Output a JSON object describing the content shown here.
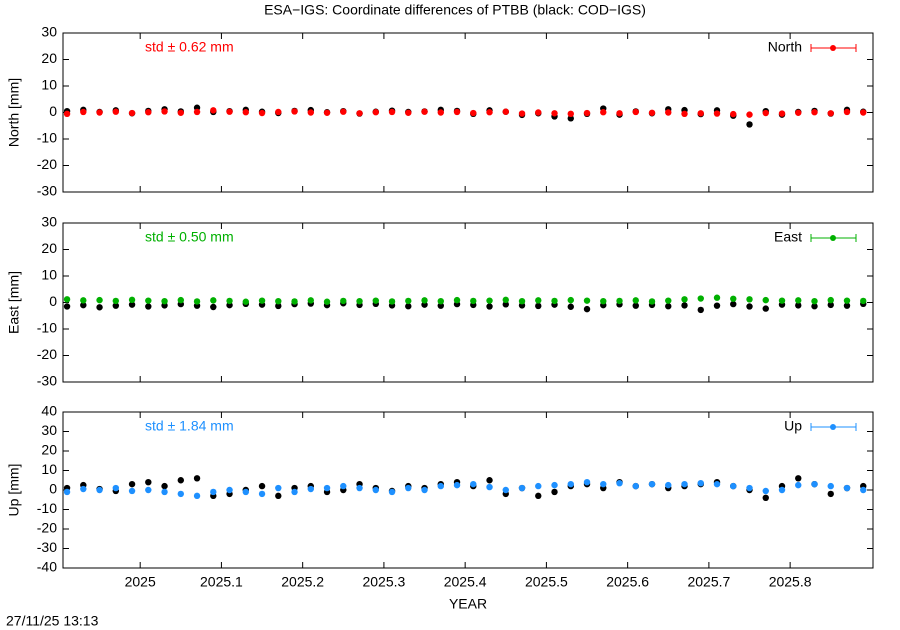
{
  "title": "ESA−IGS: Coordinate differences of PTBB (black: COD−IGS)",
  "timestamp": "27/11/25 13:13",
  "chart_data": [
    {
      "type": "scatter",
      "ylabel": "North [mm]",
      "annotation": "std ± 0.62 mm",
      "legend": "top-right",
      "xlim": [
        2024.905,
        2025.902
      ],
      "xticks": [
        2025,
        2025.1,
        2025.2,
        2025.3,
        2025.4,
        2025.5,
        2025.6,
        2025.7,
        2025.8
      ],
      "ylim": [
        -30,
        30
      ],
      "yticks": [
        -30,
        -20,
        -10,
        0,
        10,
        20,
        30
      ],
      "x": [
        2024.91,
        2024.93,
        2024.95,
        2024.97,
        2024.99,
        2025.01,
        2025.03,
        2025.05,
        2025.07,
        2025.09,
        2025.11,
        2025.13,
        2025.15,
        2025.17,
        2025.19,
        2025.21,
        2025.23,
        2025.25,
        2025.27,
        2025.29,
        2025.31,
        2025.33,
        2025.35,
        2025.37,
        2025.39,
        2025.41,
        2025.43,
        2025.45,
        2025.47,
        2025.49,
        2025.51,
        2025.53,
        2025.55,
        2025.57,
        2025.59,
        2025.61,
        2025.63,
        2025.65,
        2025.67,
        2025.69,
        2025.71,
        2025.73,
        2025.75,
        2025.77,
        2025.79,
        2025.81,
        2025.83,
        2025.85,
        2025.87,
        2025.89
      ],
      "series": [
        {
          "color": "#000000",
          "values": [
            0.5,
            1,
            0.2,
            0.8,
            -0.3,
            0.6,
            1.2,
            0.4,
            1.8,
            0.2,
            0.5,
            1,
            0.3,
            -0.2,
            0.6,
            0.9,
            0.1,
            0.5,
            -0.4,
            0.3,
            0.7,
            0.2,
            0.4,
            1,
            0.6,
            -0.5,
            0.8,
            0.3,
            -0.9,
            -0.3,
            -1.5,
            -2.2,
            -0.5,
            1.5,
            -0.8,
            0.4,
            -0.3,
            1.2,
            0.9,
            -0.6,
            0.8,
            -1.2,
            -4.5,
            0.5,
            -0.8,
            0.2,
            0.6,
            -0.4,
            1,
            0.3
          ]
        },
        {
          "name": "North",
          "color": "#ff0000",
          "values": [
            -0.5,
            0.2,
            0,
            0.3,
            -0.2,
            0.1,
            0.4,
            -0.1,
            0.2,
            0.8,
            0.3,
            0.1,
            -0.2,
            0.2,
            0.4,
            0,
            -0.1,
            0.3,
            -0.3,
            0.1,
            0.2,
            -0.1,
            0.3,
            0,
            0.2,
            -0.2,
            0.1,
            0.3,
            -0.4,
            0,
            -0.3,
            -0.5,
            -0.2,
            0.1,
            -0.3,
            0.2,
            -0.1,
            0,
            -0.5,
            -0.3,
            -0.4,
            -0.6,
            -0.8,
            -0.2,
            -0.4,
            -0.1,
            0.1,
            -0.3,
            0.2,
            0
          ]
        }
      ]
    },
    {
      "type": "scatter",
      "ylabel": "East [mm]",
      "annotation": "std ± 0.50 mm",
      "legend": "top-right",
      "xlim": [
        2024.905,
        2025.902
      ],
      "xticks": [
        2025,
        2025.1,
        2025.2,
        2025.3,
        2025.4,
        2025.5,
        2025.6,
        2025.7,
        2025.8
      ],
      "ylim": [
        -30,
        30
      ],
      "yticks": [
        -30,
        -20,
        -10,
        0,
        10,
        20,
        30
      ],
      "x": [
        2024.91,
        2024.93,
        2024.95,
        2024.97,
        2024.99,
        2025.01,
        2025.03,
        2025.05,
        2025.07,
        2025.09,
        2025.11,
        2025.13,
        2025.15,
        2025.17,
        2025.19,
        2025.21,
        2025.23,
        2025.25,
        2025.27,
        2025.29,
        2025.31,
        2025.33,
        2025.35,
        2025.37,
        2025.39,
        2025.41,
        2025.43,
        2025.45,
        2025.47,
        2025.49,
        2025.51,
        2025.53,
        2025.55,
        2025.57,
        2025.59,
        2025.61,
        2025.63,
        2025.65,
        2025.67,
        2025.69,
        2025.71,
        2025.73,
        2025.75,
        2025.77,
        2025.79,
        2025.81,
        2025.83,
        2025.85,
        2025.87,
        2025.89
      ],
      "series": [
        {
          "color": "#000000",
          "values": [
            -1.5,
            -1,
            -1.8,
            -1.2,
            -0.8,
            -1.5,
            -1.1,
            -0.6,
            -1.2,
            -1.7,
            -1,
            -0.5,
            -0.8,
            -1.3,
            -0.6,
            -0.4,
            -1,
            -0.3,
            -0.9,
            -0.5,
            -1.1,
            -1.4,
            -0.8,
            -1.2,
            -0.6,
            -0.9,
            -1.5,
            -0.7,
            -1.1,
            -1.3,
            -0.8,
            -1.6,
            -2.5,
            -1,
            -0.7,
            -1.2,
            -0.9,
            -1.4,
            -1.1,
            -2.8,
            -1.2,
            -0.6,
            -1.5,
            -2.3,
            -0.8,
            -1.1,
            -1.4,
            -0.9,
            -1.2,
            -0.5
          ]
        },
        {
          "name": "East",
          "color": "#00b000",
          "values": [
            1.2,
            0.8,
            0.9,
            0.6,
            1,
            0.7,
            0.5,
            0.9,
            0.4,
            0.8,
            0.6,
            0.3,
            0.7,
            0.5,
            0.4,
            0.8,
            0.3,
            0.6,
            0.5,
            0.7,
            0.4,
            0.6,
            0.8,
            0.5,
            0.9,
            0.6,
            0.7,
            1,
            0.5,
            0.8,
            0.6,
            0.9,
            0.7,
            0.5,
            0.6,
            0.8,
            0.4,
            0.7,
            1.2,
            1.5,
            1.8,
            1.4,
            1.2,
            0.9,
            0.7,
            0.8,
            0.5,
            0.9,
            0.7,
            0.6
          ]
        }
      ]
    },
    {
      "type": "scatter",
      "ylabel": "Up [mm]",
      "xlabel": "YEAR",
      "annotation": "std ± 1.84 mm",
      "legend": "top-right",
      "xlim": [
        2024.905,
        2025.902
      ],
      "xticks": [
        2025,
        2025.1,
        2025.2,
        2025.3,
        2025.4,
        2025.5,
        2025.6,
        2025.7,
        2025.8
      ],
      "ylim": [
        -40,
        40
      ],
      "yticks": [
        -40,
        -30,
        -20,
        -10,
        0,
        10,
        20,
        30,
        40
      ],
      "x": [
        2024.91,
        2024.93,
        2024.95,
        2024.97,
        2024.99,
        2025.01,
        2025.03,
        2025.05,
        2025.07,
        2025.09,
        2025.11,
        2025.13,
        2025.15,
        2025.17,
        2025.19,
        2025.21,
        2025.23,
        2025.25,
        2025.27,
        2025.29,
        2025.31,
        2025.33,
        2025.35,
        2025.37,
        2025.39,
        2025.41,
        2025.43,
        2025.45,
        2025.47,
        2025.49,
        2025.51,
        2025.53,
        2025.55,
        2025.57,
        2025.59,
        2025.61,
        2025.63,
        2025.65,
        2025.67,
        2025.69,
        2025.71,
        2025.73,
        2025.75,
        2025.77,
        2025.79,
        2025.81,
        2025.83,
        2025.85,
        2025.87,
        2025.89
      ],
      "series": [
        {
          "color": "#000000",
          "values": [
            1,
            2.5,
            0.5,
            -0.5,
            3,
            4,
            2,
            5,
            6,
            -3,
            -2,
            0,
            2,
            -3,
            1,
            2,
            -1,
            0,
            3,
            1,
            -0.5,
            2,
            1,
            3,
            4,
            2,
            5,
            -2,
            1,
            -3,
            -1,
            2,
            3,
            1,
            4,
            2,
            3,
            1,
            2,
            3,
            4,
            2,
            0,
            -4,
            2,
            6,
            3,
            -2,
            1,
            2
          ]
        },
        {
          "name": "Up",
          "color": "#1e90ff",
          "values": [
            -1,
            0.5,
            0,
            1,
            -0.5,
            0,
            -1,
            -2,
            -3,
            -1,
            0,
            -1,
            -2,
            1,
            -1,
            0.5,
            1,
            2,
            1,
            0,
            -1,
            1,
            0,
            2,
            2.5,
            3,
            1.5,
            0,
            1,
            2,
            2.5,
            3,
            4,
            3,
            3.5,
            2,
            3,
            2.5,
            3,
            3.5,
            3,
            2,
            1,
            -0.5,
            0,
            2.5,
            3,
            2,
            1,
            0
          ]
        }
      ]
    }
  ]
}
